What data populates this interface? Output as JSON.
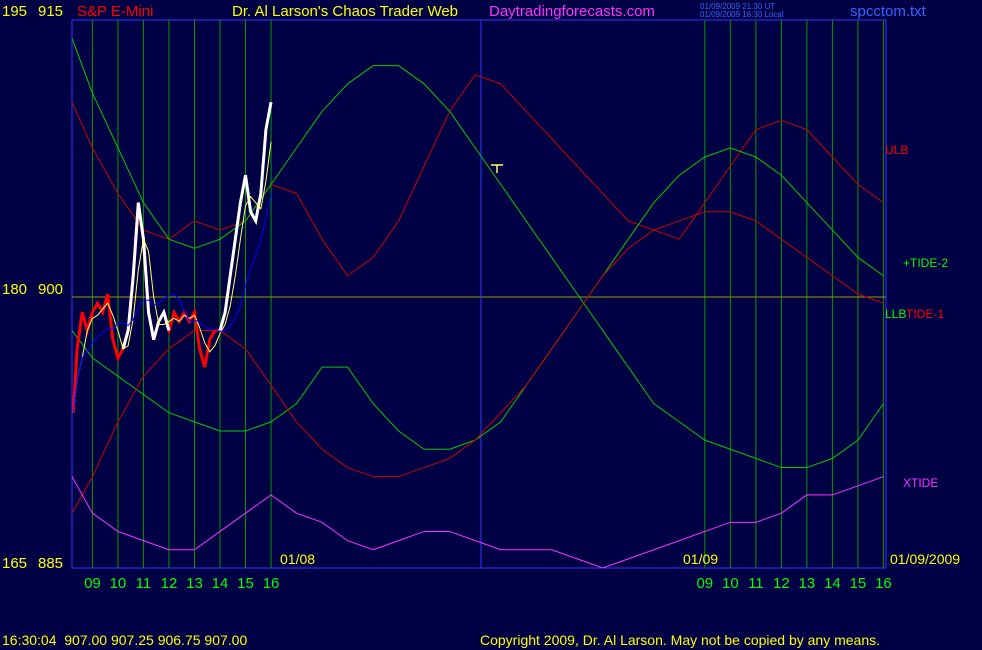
{
  "header": {
    "left_scale_top": "195",
    "price_top": "915",
    "symbol": "S&P E-Mini",
    "site_title": "Dr. Al Larson's Chaos Trader Web",
    "site_url": "Daytradingforecasts.com",
    "ut_line": "01/09/2009 21:30 UT",
    "local_line": "01/09/2009 16:30 Local",
    "file_name": "spcctom.txt"
  },
  "left_axis": {
    "mid_left": "180",
    "mid_price": "900",
    "bottom_left": "165",
    "bottom_price": "885"
  },
  "right_labels": {
    "ulb": "ULB",
    "tide2": "+TIDE-2",
    "llb": "LLB",
    "tide1": "TIDE-1",
    "xtide": "XTIDE"
  },
  "date_labels": {
    "d1": "01/08",
    "d2": "01/09",
    "d3": "01/09/2009"
  },
  "footer": {
    "quote": "16:30:04  907.00 907.25 906.75 907.00",
    "copyright": "Copyright 2009, Dr. Al Larson. May not be copied by any means."
  },
  "colors": {
    "background": "#000044",
    "grid": "#009900",
    "plot_border": "#3333ff",
    "price_red": "#ff0000",
    "price_white": "#ffffff",
    "tide2": "#00cc00",
    "tide1": "#cc0000",
    "xtide": "#ff33ff",
    "moving_avg": "#ffff66",
    "avg_blue": "#0000ff",
    "label_yellow": "#ffff00"
  },
  "chart_data": {
    "type": "line",
    "title": "S&P E-Mini",
    "y_left_ticks": [
      "195",
      "180",
      "165"
    ],
    "y_price_ticks": [
      "915",
      "900",
      "885"
    ],
    "ylim": [
      885,
      915
    ],
    "x_tick_labels": [
      "09",
      "10",
      "11",
      "12",
      "13",
      "14",
      "15",
      "16",
      "09",
      "10",
      "11",
      "12",
      "13",
      "14",
      "15",
      "16"
    ],
    "x_hours": [
      9,
      10,
      11,
      12,
      13,
      14,
      15,
      16,
      33,
      34,
      35,
      36,
      37,
      38,
      39,
      40
    ],
    "x_range_hours": [
      8.2,
      40.1
    ],
    "price_hours": [
      8.25,
      8.4,
      8.6,
      8.8,
      9.0,
      9.2,
      9.4,
      9.6,
      9.8,
      10.0,
      10.2,
      10.4,
      10.6,
      10.8,
      11.0,
      11.2,
      11.4,
      11.6,
      11.8,
      12.0,
      12.2,
      12.4,
      12.6,
      12.8,
      13.0,
      13.2,
      13.4,
      13.6,
      13.8,
      14.0,
      14.2,
      14.4,
      14.6,
      14.8,
      15.0,
      15.2,
      15.4,
      15.6,
      15.8,
      16.0
    ],
    "price_values": [
      893.5,
      897,
      899,
      898,
      899,
      899.5,
      899,
      900,
      897.5,
      896.5,
      897,
      898,
      901,
      905,
      903,
      899,
      897.5,
      898.5,
      899,
      898,
      899,
      898.5,
      899,
      898.5,
      899,
      897,
      896,
      897.5,
      898,
      898,
      899,
      901,
      903,
      905,
      906.5,
      904.5,
      904,
      905.5,
      909,
      910.5
    ],
    "price_last": 907.0,
    "close": "907.00",
    "series": [
      {
        "name": "ULB",
        "x": [
          8.2,
          9,
          10,
          11,
          12,
          13,
          14,
          15,
          16,
          17,
          18,
          19,
          20,
          21,
          22,
          23,
          24,
          25,
          26,
          27,
          28,
          29,
          30,
          31,
          32,
          33,
          34,
          35,
          36,
          37,
          38,
          39,
          40,
          41,
          42,
          43,
          44,
          45,
          46,
          47,
          48
        ],
        "values": [
          910.5,
          908,
          905.5,
          903.5,
          903,
          904,
          903.5,
          904,
          906,
          905.5,
          903,
          901,
          902,
          904,
          907,
          910,
          912,
          911.5,
          910,
          908.5,
          907,
          905.5,
          904,
          903.5,
          903,
          905,
          907,
          909,
          909.5,
          909,
          907.5,
          906,
          905,
          904,
          903,
          902.5,
          902,
          902,
          903,
          901,
          899
        ]
      },
      {
        "name": "+TIDE-2",
        "x": [
          8.2,
          9,
          10,
          11,
          12,
          13,
          14,
          15,
          16,
          17,
          18,
          19,
          20,
          21,
          22,
          23,
          24,
          25,
          26,
          27,
          28,
          29,
          30,
          31,
          32,
          33,
          34,
          35,
          36,
          37,
          38,
          39,
          40,
          41,
          42,
          43,
          44,
          45,
          46,
          47,
          48
        ],
        "values": [
          914,
          911,
          908,
          905,
          903,
          902.5,
          903,
          904,
          906,
          908,
          910,
          911.5,
          912.5,
          912.5,
          911.5,
          910,
          908,
          906,
          904,
          902,
          900,
          898,
          896,
          894,
          893,
          892,
          891.5,
          891,
          890.5,
          890.5,
          891,
          892,
          894,
          896,
          898,
          899,
          899.5,
          899.5,
          899,
          898.5,
          898
        ]
      },
      {
        "name": "LLB",
        "x": [
          8.2,
          9,
          10,
          11,
          12,
          13,
          14,
          15,
          16,
          17,
          18,
          19,
          20,
          21,
          22,
          23,
          24,
          25,
          26,
          27,
          28,
          29,
          30,
          31,
          32,
          33,
          34,
          35,
          36,
          37,
          38,
          39,
          40,
          41,
          42,
          43,
          44,
          45,
          46,
          47,
          48
        ],
        "values": [
          898,
          896.5,
          895.5,
          894.5,
          893.5,
          893,
          892.5,
          892.5,
          893,
          894,
          896,
          896,
          894,
          892.5,
          891.5,
          891.5,
          892,
          893,
          895,
          897,
          899,
          901,
          903,
          905,
          906.5,
          907.5,
          908,
          907.5,
          906.5,
          905,
          903.5,
          902,
          901,
          900,
          899.5,
          899,
          899,
          899,
          899,
          899,
          899
        ]
      },
      {
        "name": "TIDE-1",
        "x": [
          8.2,
          9,
          10,
          11,
          12,
          13,
          14,
          15,
          16,
          17,
          18,
          19,
          20,
          21,
          22,
          23,
          24,
          25,
          26,
          27,
          28,
          29,
          30,
          31,
          32,
          33,
          34,
          35,
          36,
          37,
          38,
          39,
          40,
          41,
          42,
          43,
          44,
          45,
          46,
          47,
          48
        ],
        "values": [
          888,
          890,
          893,
          895.5,
          897,
          898,
          898,
          897,
          895,
          893,
          891.5,
          890.5,
          890,
          890,
          890.5,
          891,
          892,
          893.5,
          895,
          897,
          899,
          901,
          902.5,
          903.5,
          904,
          904.5,
          904.5,
          904,
          903,
          902,
          901,
          900,
          899.5,
          899,
          899,
          899,
          899,
          899,
          899,
          899,
          899
        ]
      },
      {
        "name": "XTIDE",
        "x": [
          8.2,
          9,
          10,
          11,
          12,
          13,
          14,
          15,
          16,
          17,
          18,
          19,
          20,
          21,
          22,
          23,
          24,
          25,
          26,
          27,
          28,
          29,
          30,
          31,
          32,
          33,
          34,
          35,
          36,
          37,
          38,
          39,
          40,
          41,
          42,
          43,
          44,
          45,
          46,
          47,
          48
        ],
        "values": [
          890,
          888,
          887,
          886.5,
          886,
          886,
          887,
          888,
          889,
          888,
          887.5,
          886.5,
          886,
          886.5,
          887,
          887,
          886.5,
          886,
          886,
          886,
          885.5,
          885,
          885.5,
          886,
          886.5,
          887,
          887.5,
          887.5,
          888,
          889,
          889,
          889.5,
          890,
          889,
          888.5,
          888,
          888,
          888,
          888,
          888,
          888
        ]
      }
    ]
  }
}
